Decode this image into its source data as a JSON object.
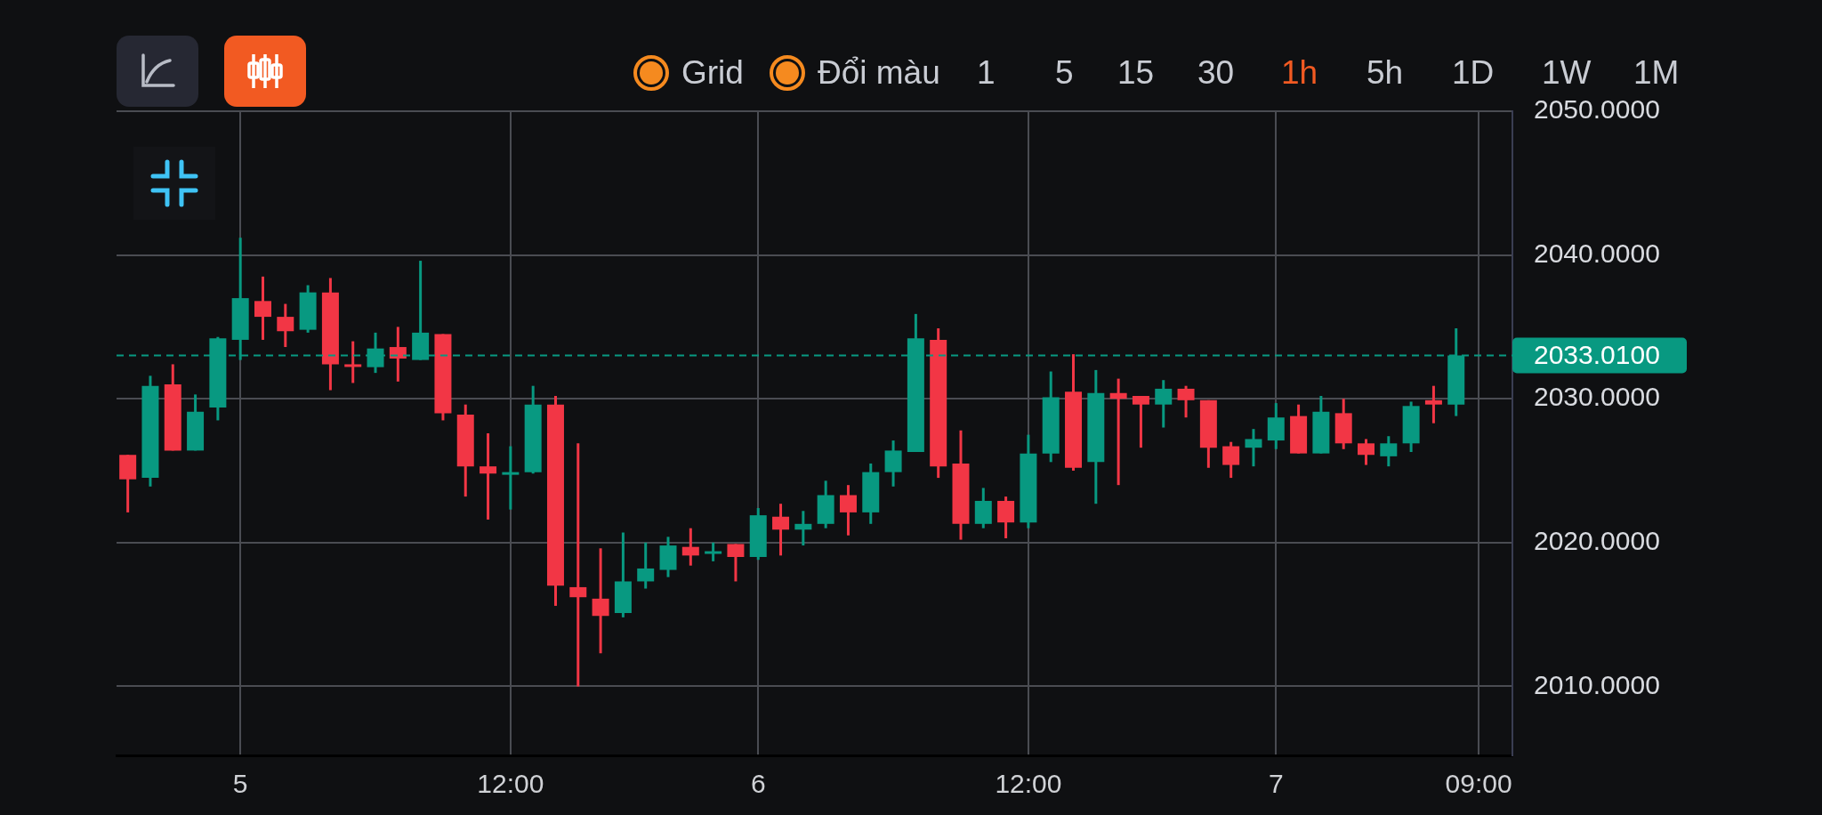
{
  "chart_data": {
    "type": "candlestick",
    "categories": [
      null,
      null,
      null,
      null,
      null,
      "5",
      null,
      null,
      null,
      null,
      null,
      null,
      null,
      null,
      null,
      null,
      null,
      "12:00",
      null,
      null,
      null,
      null,
      null,
      null,
      null,
      null,
      null,
      null,
      "6",
      null,
      null,
      null,
      null,
      null,
      null,
      null,
      null,
      null,
      null,
      null,
      "12:00",
      null,
      null,
      null,
      null,
      null,
      null,
      null,
      null,
      null,
      null,
      "7",
      null,
      null,
      null,
      null,
      null,
      null,
      null,
      null,
      "09:00",
      null
    ],
    "ohlc": [
      [
        2026.1,
        2026.1,
        2022.1,
        2024.4
      ],
      [
        2024.5,
        2031.6,
        2023.9,
        2030.9
      ],
      [
        2031.0,
        2032.4,
        2026.4,
        2026.4
      ],
      [
        2026.4,
        2030.3,
        2026.4,
        2029.1
      ],
      [
        2029.4,
        2034.3,
        2028.5,
        2034.2
      ],
      [
        2034.1,
        2041.2,
        2032.7,
        2037.0
      ],
      [
        2036.8,
        2038.5,
        2034.1,
        2035.7
      ],
      [
        2035.7,
        2036.6,
        2033.6,
        2034.7
      ],
      [
        2034.8,
        2037.9,
        2034.6,
        2037.4
      ],
      [
        2037.4,
        2038.4,
        2030.6,
        2032.4
      ],
      [
        2032.4,
        2034.0,
        2031.1,
        2032.3
      ],
      [
        2032.2,
        2034.6,
        2031.8,
        2033.5
      ],
      [
        2033.6,
        2035.0,
        2031.2,
        2032.8
      ],
      [
        2032.7,
        2039.6,
        2032.7,
        2034.6
      ],
      [
        2034.5,
        2034.5,
        2028.5,
        2029.0
      ],
      [
        2028.9,
        2029.6,
        2023.2,
        2025.3
      ],
      [
        2025.3,
        2027.6,
        2021.6,
        2024.8
      ],
      [
        2024.8,
        2026.7,
        2022.3,
        2024.9
      ],
      [
        2024.9,
        2030.9,
        2024.8,
        2029.6
      ],
      [
        2029.6,
        2030.2,
        2015.6,
        2017.0
      ],
      [
        2016.9,
        2026.9,
        2010.0,
        2016.2
      ],
      [
        2016.1,
        2019.6,
        2012.3,
        2014.9
      ],
      [
        2015.1,
        2020.7,
        2014.8,
        2017.3
      ],
      [
        2017.3,
        2020.0,
        2016.8,
        2018.2
      ],
      [
        2018.1,
        2020.4,
        2017.6,
        2019.8
      ],
      [
        2019.7,
        2021.0,
        2018.4,
        2019.1
      ],
      [
        2019.3,
        2020.0,
        2018.7,
        2019.4
      ],
      [
        2019.9,
        2019.9,
        2017.3,
        2019.0
      ],
      [
        2019.0,
        2022.4,
        2018.8,
        2021.9
      ],
      [
        2021.8,
        2022.7,
        2019.1,
        2020.9
      ],
      [
        2020.9,
        2022.2,
        2019.8,
        2021.3
      ],
      [
        2021.3,
        2024.3,
        2021.0,
        2023.3
      ],
      [
        2023.3,
        2024.0,
        2020.5,
        2022.1
      ],
      [
        2022.1,
        2025.5,
        2021.3,
        2024.9
      ],
      [
        2024.9,
        2027.1,
        2023.9,
        2026.4
      ],
      [
        2026.3,
        2035.9,
        2026.3,
        2034.2
      ],
      [
        2034.1,
        2034.9,
        2024.5,
        2025.3
      ],
      [
        2025.5,
        2027.8,
        2020.2,
        2021.3
      ],
      [
        2021.3,
        2023.8,
        2021.0,
        2022.9
      ],
      [
        2022.9,
        2023.2,
        2020.3,
        2021.4
      ],
      [
        2021.4,
        2027.5,
        2021.0,
        2026.2
      ],
      [
        2026.2,
        2031.9,
        2025.6,
        2030.1
      ],
      [
        2030.5,
        2033.1,
        2025.0,
        2025.2
      ],
      [
        2025.6,
        2032.0,
        2022.7,
        2030.4
      ],
      [
        2030.4,
        2031.4,
        2024.0,
        2030.0
      ],
      [
        2030.2,
        2030.2,
        2026.6,
        2029.6
      ],
      [
        2029.6,
        2031.3,
        2028.0,
        2030.7
      ],
      [
        2030.7,
        2030.9,
        2028.7,
        2029.9
      ],
      [
        2029.9,
        2029.9,
        2025.2,
        2026.6
      ],
      [
        2026.7,
        2027.0,
        2024.5,
        2025.4
      ],
      [
        2026.6,
        2027.9,
        2025.3,
        2027.2
      ],
      [
        2027.1,
        2029.7,
        2026.5,
        2028.7
      ],
      [
        2028.8,
        2029.6,
        2026.2,
        2026.2
      ],
      [
        2026.2,
        2030.2,
        2026.2,
        2029.1
      ],
      [
        2029.0,
        2030.0,
        2026.5,
        2026.9
      ],
      [
        2026.9,
        2027.2,
        2025.4,
        2026.1
      ],
      [
        2026.0,
        2027.4,
        2025.3,
        2026.9
      ],
      [
        2026.9,
        2029.8,
        2026.3,
        2029.5
      ],
      [
        2029.9,
        2030.9,
        2028.3,
        2029.6
      ],
      [
        2029.6,
        2034.9,
        2028.8,
        2033.01
      ],
      null,
      null
    ],
    "colors": [
      "#f23645",
      "#089981",
      "#f23645",
      "#089981",
      "#089981",
      "#089981",
      "#f23645",
      "#f23645",
      "#089981",
      "#f23645",
      "#f23645",
      "#089981",
      "#f23645",
      "#089981",
      "#f23645",
      "#f23645",
      "#f23645",
      "#089981",
      "#089981",
      "#f23645",
      "#f23645",
      "#f23645",
      "#089981",
      "#089981",
      "#089981",
      "#f23645",
      "#089981",
      "#f23645",
      "#089981",
      "#f23645",
      "#089981",
      "#089981",
      "#f23645",
      "#089981",
      "#089981",
      "#089981",
      "#f23645",
      "#f23645",
      "#089981",
      "#f23645",
      "#089981",
      "#089981",
      "#f23645",
      "#089981",
      "#f23645",
      "#f23645",
      "#089981",
      "#f23645",
      "#f23645",
      "#f23645",
      "#089981",
      "#089981",
      "#f23645",
      "#089981",
      "#f23645",
      "#f23645",
      "#089981",
      "#089981",
      "#f23645",
      "#089981",
      null,
      null
    ],
    "ylim": [
      2005.2,
      2050
    ],
    "yticks": [
      {
        "value": 2010,
        "label": "2010.0000"
      },
      {
        "value": 2020,
        "label": "2020.0000"
      },
      {
        "value": 2030,
        "label": "2030.0000"
      },
      {
        "value": 2040,
        "label": "2040.0000"
      },
      {
        "value": 2050,
        "label": "2050.0000"
      }
    ],
    "grid": true,
    "legend": false,
    "ref_lines": [
      {
        "axis": "y",
        "value": 2033.01,
        "label": "2033.0100",
        "color": "#089981",
        "line_style": "dashed"
      }
    ],
    "annotations": [
      "Grid",
      "Đổi màu",
      "1",
      "5",
      "15",
      "30",
      "1h",
      "5h",
      "1D",
      "1W",
      "1M"
    ]
  }
}
